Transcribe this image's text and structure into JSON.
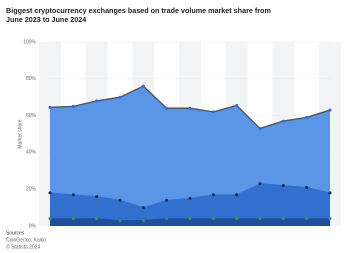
{
  "chart_data": {
    "type": "area",
    "title": "Biggest cryptocurrency exchanges based on trade volume market share from June 2023 to June 2024",
    "y_label": "Market share",
    "source_label": "Sources",
    "source": "CoinGecko; Kaiko",
    "copyright": "© Statista 2024",
    "categories": [
      null,
      null,
      null,
      null,
      null,
      null,
      null,
      null,
      null,
      null,
      null,
      null,
      null
    ],
    "stacked": true,
    "series": [
      {
        "color": "#1f4e9c",
        "values": [
          4,
          4,
          4,
          3,
          3,
          4,
          4,
          4,
          4,
          4,
          4,
          4,
          4
        ]
      },
      {
        "color": "#3170cf",
        "values": [
          14,
          13,
          12,
          11,
          7,
          10,
          11,
          13,
          13,
          19,
          18,
          17,
          14
        ]
      },
      {
        "color": "#5b95e6",
        "values": [
          46.5,
          48,
          52,
          56,
          66,
          50,
          49,
          45,
          48.5,
          30,
          35,
          38,
          45
        ]
      }
    ],
    "ylim": [
      0,
      100
    ],
    "yticks": [
      {
        "value": 0,
        "label": "0%"
      },
      {
        "value": 20,
        "label": "20%"
      },
      {
        "value": 40,
        "label": "40%"
      },
      {
        "value": 60,
        "label": "60%"
      },
      {
        "value": 80,
        "label": "80%"
      },
      {
        "value": 100,
        "label": "100%"
      }
    ],
    "grid": true
  }
}
